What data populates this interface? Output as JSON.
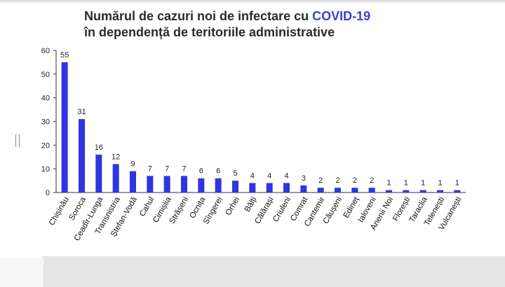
{
  "title": {
    "line1_prefix": "Numărul de cazuri noi de infectare cu ",
    "line1_accent": "COVID-19",
    "line2": "în dependență de teritoriile administrative",
    "accent_color": "#3a3fd8"
  },
  "chart_data": {
    "type": "bar",
    "title": "Numărul de cazuri noi de infectare cu COVID-19 în dependență de teritoriile administrative",
    "xlabel": "",
    "ylabel": "",
    "ylim": [
      0,
      60
    ],
    "yticks": [
      0,
      10,
      20,
      30,
      40,
      50,
      60
    ],
    "grid": false,
    "bar_color": "#2e35e0",
    "categories": [
      "Chișinău",
      "Soroca",
      "Ceadîr-Lunga",
      "Transnistria",
      "Ștefan-Vodă",
      "Cahul",
      "Cimișlia",
      "Strășeni",
      "Ocnița",
      "Sîngerei",
      "Orhei",
      "Bălți",
      "Călărași",
      "Criuleni",
      "Comrat",
      "Cantemir",
      "Căușeni",
      "Edineț",
      "Ialoveni",
      "Anenii Noi",
      "Florești",
      "Taraclia",
      "Telenești",
      "Vulcanești"
    ],
    "values": [
      55,
      31,
      16,
      12,
      9,
      7,
      7,
      7,
      6,
      6,
      5,
      4,
      4,
      4,
      3,
      2,
      2,
      2,
      2,
      1,
      1,
      1,
      1,
      1
    ]
  }
}
